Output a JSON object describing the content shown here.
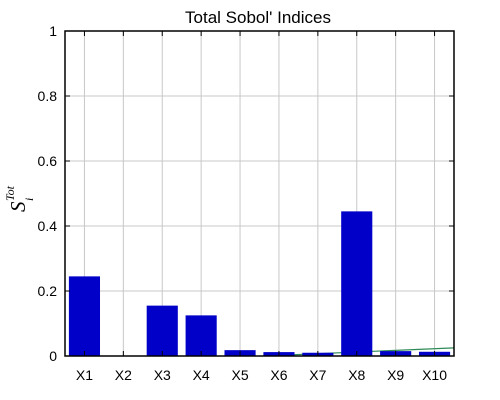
{
  "chart_data": {
    "type": "bar",
    "title": "Total Sobol' Indices",
    "xlabel": "",
    "ylabel": {
      "base": "S",
      "sub": "i",
      "sup": "Tot"
    },
    "categories": [
      "X1",
      "X2",
      "X3",
      "X4",
      "X5",
      "X6",
      "X7",
      "X8",
      "X9",
      "X10"
    ],
    "values": [
      0.245,
      0.0,
      0.155,
      0.125,
      0.018,
      0.012,
      0.01,
      0.445,
      0.015,
      0.013
    ],
    "ylim": [
      0,
      1
    ],
    "yticks": [
      0,
      0.2,
      0.4,
      0.6,
      0.8,
      1
    ],
    "ytick_labels": [
      "0",
      "0.2",
      "0.4",
      "0.6",
      "0.8",
      "1"
    ],
    "grid": true,
    "bar_color": "#0000c8",
    "trend_line": {
      "color": "#2e8b57",
      "x": [
        6,
        10.5
      ],
      "y": [
        0.002,
        0.025
      ]
    }
  }
}
